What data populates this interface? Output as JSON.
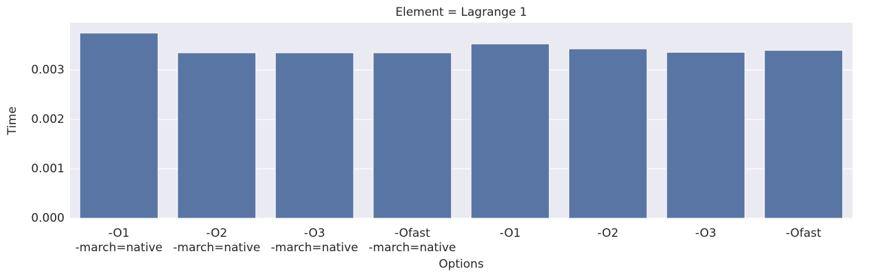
{
  "chart_data": {
    "type": "bar",
    "title": "Element = Lagrange 1",
    "x_label": "Options",
    "y_label": "Time",
    "categories": [
      [
        "-O1",
        "-march=native"
      ],
      [
        "-O2",
        "-march=native"
      ],
      [
        "-O3",
        "-march=native"
      ],
      [
        "-Ofast",
        "-march=native"
      ],
      [
        "-O1"
      ],
      [
        "-O2"
      ],
      [
        "-O3"
      ],
      [
        "-Ofast"
      ]
    ],
    "values": [
      0.00375,
      0.00335,
      0.00335,
      0.00335,
      0.00353,
      0.00343,
      0.00336,
      0.0034
    ],
    "color": "#5975a4",
    "ylim": [
      0,
      0.00396
    ],
    "yticks": [
      {
        "value": 0,
        "label": "0.000"
      },
      {
        "value": 0.001,
        "label": "0.001"
      },
      {
        "value": 0.002,
        "label": "0.002"
      },
      {
        "value": 0.003,
        "label": "0.003"
      }
    ],
    "grid": true
  }
}
